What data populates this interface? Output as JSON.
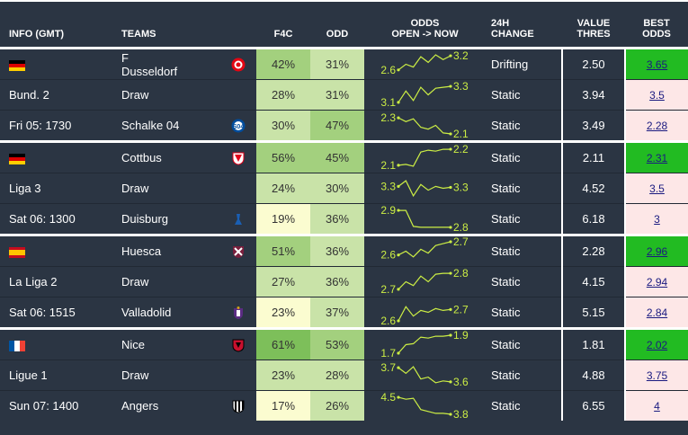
{
  "headers": {
    "info": "INFO (GMT)",
    "teams": "TEAMS",
    "f4c": "F4C",
    "odd": "ODD",
    "odds_l1": "ODDS",
    "odds_l2": "OPEN -> NOW",
    "chg_l1": "24H",
    "chg_l2": "CHANGE",
    "val_l1": "VALUE",
    "val_l2": "THRES",
    "best_l1": "BEST",
    "best_l2": "ODDS"
  },
  "colors": {
    "f4c_dark": "#7dbf5a",
    "f4c_mid": "#a3d07e",
    "f4c_light": "#c9e3a8",
    "f4c_pale": "#fbfcd0",
    "best_green": "#22bb22",
    "best_pink": "#fde7e7",
    "spark": "#ccee44"
  },
  "matches": [
    {
      "flag": "germany-flag",
      "league": "Bund. 2",
      "kickoff": "Fri 05: 1730",
      "rows": [
        {
          "team": "F Dusseldorf",
          "crest": "dusseldorf-crest",
          "f4c": "42%",
          "f4c_shade": "mid",
          "odd": "31%",
          "odd_shade": "light",
          "open": "2.6",
          "now": "3.2",
          "trend": [
            0.2,
            0.5,
            0.35,
            0.9,
            0.6,
            1.0,
            0.75,
            0.95
          ],
          "change": "Drifting",
          "value": "2.50",
          "best": "3.65",
          "best_hl": true
        },
        {
          "team": "Draw",
          "crest": "",
          "f4c": "28%",
          "f4c_shade": "light",
          "odd": "31%",
          "odd_shade": "light",
          "open": "3.1",
          "now": "3.3",
          "trend": [
            0.1,
            0.7,
            0.2,
            0.9,
            0.5,
            0.85,
            0.9,
            0.95
          ],
          "change": "Static",
          "value": "3.94",
          "best": "3.5",
          "best_hl": false
        },
        {
          "team": "Schalke 04",
          "crest": "schalke-crest",
          "f4c": "30%",
          "f4c_shade": "light",
          "odd": "47%",
          "odd_shade": "mid",
          "open": "2.3",
          "now": "2.1",
          "trend": [
            0.9,
            0.7,
            0.85,
            0.4,
            0.3,
            0.5,
            0.1,
            0.05
          ],
          "change": "Static",
          "value": "3.49",
          "best": "2.28",
          "best_hl": false
        }
      ]
    },
    {
      "flag": "germany-flag",
      "league": "Liga 3",
      "kickoff": "Sat 06: 1300",
      "rows": [
        {
          "team": "Cottbus",
          "crest": "cottbus-crest",
          "f4c": "56%",
          "f4c_shade": "mid",
          "odd": "45%",
          "odd_shade": "mid",
          "open": "2.1",
          "now": "2.2",
          "trend": [
            0.1,
            0.15,
            0.05,
            0.8,
            0.9,
            0.85,
            0.95,
            0.95
          ],
          "change": "Static",
          "value": "2.11",
          "best": "2.31",
          "best_hl": true
        },
        {
          "team": "Draw",
          "crest": "",
          "f4c": "24%",
          "f4c_shade": "light",
          "odd": "30%",
          "odd_shade": "light",
          "open": "3.3",
          "now": "3.3",
          "trend": [
            0.6,
            0.9,
            0.1,
            0.7,
            0.4,
            0.6,
            0.5,
            0.55
          ],
          "change": "Static",
          "value": "4.52",
          "best": "3.5",
          "best_hl": false
        },
        {
          "team": "Duisburg",
          "crest": "duisburg-crest",
          "f4c": "19%",
          "f4c_shade": "pale",
          "odd": "36%",
          "odd_shade": "light",
          "open": "2.9",
          "now": "2.8",
          "trend": [
            0.95,
            0.95,
            0.1,
            0.05,
            0.05,
            0.05,
            0.05,
            0.05
          ],
          "change": "Static",
          "value": "6.18",
          "best": "3",
          "best_hl": false
        }
      ]
    },
    {
      "flag": "spain-flag",
      "league": "La Liga 2",
      "kickoff": "Sat 06: 1515",
      "rows": [
        {
          "team": "Huesca",
          "crest": "huesca-crest",
          "f4c": "51%",
          "f4c_shade": "mid",
          "odd": "36%",
          "odd_shade": "light",
          "open": "2.6",
          "now": "2.7",
          "trend": [
            0.3,
            0.5,
            0.2,
            0.6,
            0.4,
            0.8,
            0.9,
            1.0
          ],
          "change": "Static",
          "value": "2.28",
          "best": "2.96",
          "best_hl": true
        },
        {
          "team": "Draw",
          "crest": "",
          "f4c": "27%",
          "f4c_shade": "light",
          "odd": "36%",
          "odd_shade": "light",
          "open": "2.7",
          "now": "2.8",
          "trend": [
            0.1,
            0.5,
            0.3,
            0.8,
            0.5,
            0.9,
            0.95,
            0.95
          ],
          "change": "Static",
          "value": "4.15",
          "best": "2.94",
          "best_hl": false
        },
        {
          "team": "Valladolid",
          "crest": "valladolid-crest",
          "f4c": "23%",
          "f4c_shade": "pale",
          "odd": "37%",
          "odd_shade": "light",
          "open": "2.6",
          "now": "2.7",
          "trend": [
            0.05,
            0.8,
            0.3,
            0.6,
            0.5,
            0.7,
            0.6,
            0.65
          ],
          "change": "Static",
          "value": "5.15",
          "best": "2.84",
          "best_hl": false
        }
      ]
    },
    {
      "flag": "france-flag",
      "league": "Ligue 1",
      "kickoff": "Sun 07: 1400",
      "rows": [
        {
          "team": "Nice",
          "crest": "nice-crest",
          "f4c": "61%",
          "f4c_shade": "dark",
          "odd": "53%",
          "odd_shade": "mid",
          "open": "1.7",
          "now": "1.9",
          "trend": [
            0.05,
            0.5,
            0.55,
            0.9,
            0.85,
            0.95,
            0.95,
            1.0
          ],
          "change": "Static",
          "value": "1.81",
          "best": "2.02",
          "best_hl": true
        },
        {
          "team": "Draw",
          "crest": "",
          "f4c": "23%",
          "f4c_shade": "light",
          "odd": "28%",
          "odd_shade": "light",
          "open": "3.7",
          "now": "3.6",
          "trend": [
            0.9,
            0.6,
            0.95,
            0.3,
            0.4,
            0.1,
            0.2,
            0.15
          ],
          "change": "Static",
          "value": "4.88",
          "best": "3.75",
          "best_hl": false
        },
        {
          "team": "Angers",
          "crest": "angers-crest",
          "f4c": "17%",
          "f4c_shade": "pale",
          "odd": "26%",
          "odd_shade": "light",
          "open": "4.5",
          "now": "3.8",
          "trend": [
            0.95,
            0.85,
            0.9,
            0.3,
            0.2,
            0.1,
            0.1,
            0.05
          ],
          "change": "Static",
          "value": "6.55",
          "best": "4",
          "best_hl": false
        }
      ]
    }
  ]
}
